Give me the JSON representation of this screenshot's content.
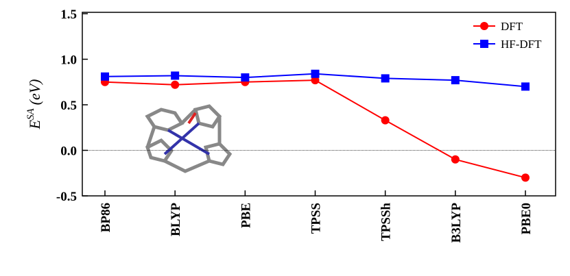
{
  "chart_data": {
    "type": "line",
    "categories": [
      "BP86",
      "BLYP",
      "PBE",
      "TPSS",
      "TPSSh",
      "B3LYP",
      "PBE0"
    ],
    "series": [
      {
        "name": "DFT",
        "color": "#ff0000",
        "marker": "circle",
        "values": [
          0.75,
          0.72,
          0.75,
          0.77,
          0.33,
          -0.1,
          -0.3
        ]
      },
      {
        "name": "HF-DFT",
        "color": "#0000ff",
        "marker": "square",
        "values": [
          0.81,
          0.82,
          0.8,
          0.84,
          0.79,
          0.77,
          0.7
        ]
      }
    ],
    "ylabel": "E",
    "ylabel_sup": "SA",
    "ylabel_unit": "(eV)",
    "ylim": [
      -0.5,
      1.5
    ],
    "yticks": [
      {
        "value": -0.5,
        "label": "-0.5"
      },
      {
        "value": 0,
        "label": "0.0"
      },
      0.5,
      {
        "value": 1,
        "label": "1.0"
      },
      1.5
    ],
    "reference_line": 0,
    "legend": "upper right"
  }
}
